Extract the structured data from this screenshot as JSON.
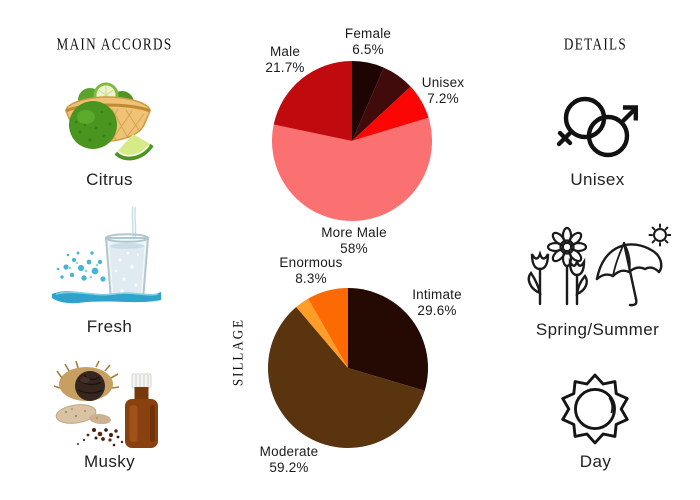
{
  "accords_panel": {
    "title": "MAIN ACCORDS",
    "items": [
      {
        "label": "Citrus",
        "image": "bergamot-basket-photo"
      },
      {
        "label": "Fresh",
        "image": "water-splash-glass-photo"
      },
      {
        "label": "Musky",
        "image": "musk-pod-and-bottle-photo"
      }
    ]
  },
  "details_panel": {
    "title": "DETAILS",
    "items": [
      {
        "label": "Unisex",
        "icon": "unisex-gender-symbols-icon"
      },
      {
        "label": "Spring/Summer",
        "icon": "flowers-umbrella-sun-icon"
      },
      {
        "label": "Day",
        "icon": "sun-icon"
      }
    ]
  },
  "chart_data": [
    {
      "type": "pie",
      "name": "gender",
      "start_angle_deg": -90,
      "direction": "clockwise",
      "legend": "labels-around-pie",
      "slices": [
        {
          "label": "Female",
          "pct": 6.5,
          "pct_label": "6.5%",
          "color": "#1f0404"
        },
        {
          "label": "",
          "pct": 6.6,
          "pct_label": "",
          "color": "#420b0b"
        },
        {
          "label": "Unisex",
          "pct": 7.2,
          "pct_label": "7.2%",
          "color": "#fb0505"
        },
        {
          "label": "More Male",
          "pct": 58,
          "pct_label": "58%",
          "color": "#fb7070"
        },
        {
          "label": "Male",
          "pct": 21.7,
          "pct_label": "21.7%",
          "color": "#c00a0e"
        }
      ]
    },
    {
      "type": "pie",
      "name": "sillage",
      "axis_label": "SILLAGE",
      "start_angle_deg": -90,
      "direction": "clockwise",
      "legend": "labels-around-pie",
      "slices": [
        {
          "label": "Intimate",
          "pct": 29.6,
          "pct_label": "29.6%",
          "color": "#240a02"
        },
        {
          "label": "Moderate",
          "pct": 59.2,
          "pct_label": "59.2%",
          "color": "#5a330f"
        },
        {
          "label": "",
          "pct": 2.9,
          "pct_label": "",
          "color": "#fe9d27"
        },
        {
          "label": "Enormous",
          "pct": 8.3,
          "pct_label": "8.3%",
          "color": "#fd6a04"
        }
      ]
    }
  ]
}
